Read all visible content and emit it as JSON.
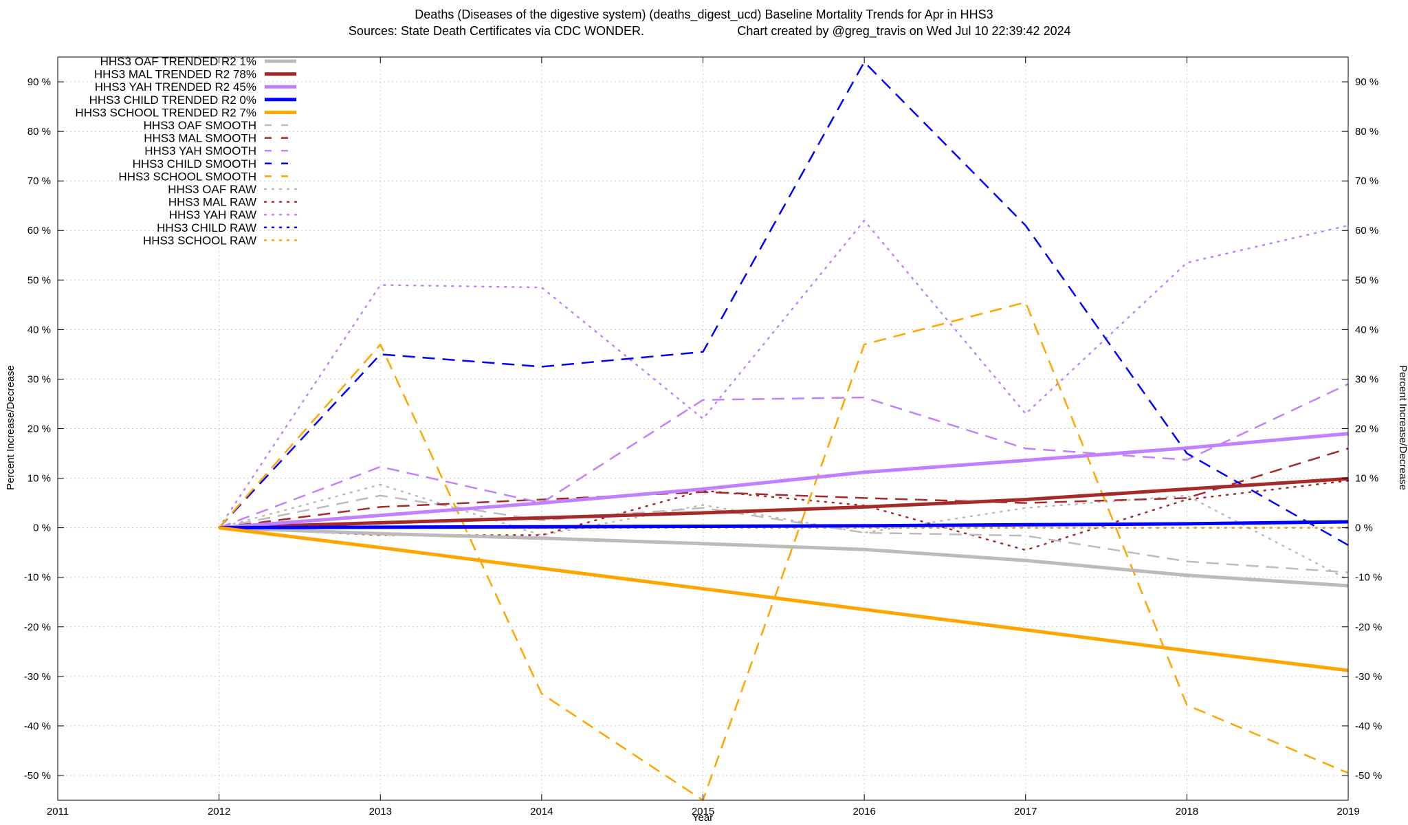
{
  "chart_data": {
    "type": "line",
    "title_line1": "Deaths (Diseases of the digestive system) (deaths_digest_ucd)  Baseline Mortality Trends for Apr in HHS3",
    "title_line2_left": "Sources: State Death Certificates via CDC WONDER.",
    "title_line2_right": "Chart created by @greg_travis on Wed Jul 10 22:39:42 2024",
    "xlabel": "Year",
    "ylabel_left": "Percent Increase/Decrease",
    "ylabel_right": "Percent Increase/Decrease",
    "xlim": [
      2011,
      2019
    ],
    "ylim": [
      -55,
      95
    ],
    "x_ticks": [
      "2011",
      "2012",
      "2013",
      "2014",
      "2015",
      "2016",
      "2017",
      "2018",
      "2019"
    ],
    "y_ticks": [
      "-50 %",
      "-40 %",
      "-30 %",
      "-20 %",
      "-10 %",
      "0 %",
      "10 %",
      "20 %",
      "30 %",
      "40 %",
      "50 %",
      "60 %",
      "70 %",
      "80 %",
      "90 %"
    ],
    "y_tick_values": [
      -50,
      -40,
      -30,
      -20,
      -10,
      0,
      10,
      20,
      30,
      40,
      50,
      60,
      70,
      80,
      90
    ],
    "grid": true,
    "legend_position": "top-left",
    "x": [
      2012,
      2013,
      2014,
      2015,
      2016,
      2017,
      2018,
      2019
    ],
    "series": [
      {
        "name": "HHS3 OAF TRENDED R2",
        "r2": "1%",
        "color": "#bbbbbb",
        "style": "solid",
        "values": [
          0,
          -1.2,
          -2.1,
          -3.2,
          -4.4,
          -6.6,
          -9.6,
          -11.7
        ]
      },
      {
        "name": "HHS3 MAL TRENDED R2",
        "r2": "78%",
        "color": "#a52a2a",
        "style": "solid",
        "values": [
          0,
          1.0,
          2.0,
          3.0,
          4.2,
          5.7,
          7.8,
          9.9
        ]
      },
      {
        "name": "HHS3 YAH TRENDED R2",
        "r2": "45%",
        "color": "#c080ff",
        "style": "solid",
        "values": [
          0,
          2.5,
          5.0,
          7.8,
          11.2,
          13.6,
          16.1,
          19.0
        ]
      },
      {
        "name": "HHS3 CHILD TRENDED R2",
        "r2": "0%",
        "color": "#0000ff",
        "style": "solid",
        "values": [
          0,
          0.1,
          0.2,
          0.3,
          0.4,
          0.6,
          0.8,
          1.2
        ]
      },
      {
        "name": "HHS3 SCHOOL TRENDED R2",
        "r2": "7%",
        "color": "#ffa500",
        "style": "solid",
        "values": [
          0,
          -4.0,
          -8.2,
          -12.3,
          -16.5,
          -20.6,
          -24.8,
          -28.8
        ]
      },
      {
        "name": "HHS3 OAF SMOOTH",
        "color": "#bbbbbb",
        "style": "dashed",
        "values": [
          0,
          6.5,
          1.5,
          4.0,
          -1.0,
          -1.6,
          -6.8,
          -9.0
        ]
      },
      {
        "name": "HHS3 MAL SMOOTH",
        "color": "#a52a2a",
        "style": "dashed",
        "values": [
          0,
          4.2,
          5.7,
          7.2,
          6.0,
          5.0,
          6.0,
          16.0
        ]
      },
      {
        "name": "HHS3 YAH SMOOTH",
        "color": "#c080ff",
        "style": "dashed",
        "values": [
          0,
          12.3,
          5.0,
          25.8,
          26.3,
          16.0,
          13.7,
          29.0
        ]
      },
      {
        "name": "HHS3 CHILD SMOOTH",
        "color": "#0000ff",
        "style": "dashed",
        "values": [
          0,
          35.0,
          32.5,
          35.5,
          94.0,
          61.0,
          15.0,
          -3.5
        ]
      },
      {
        "name": "HHS3 SCHOOL SMOOTH",
        "color": "#ffa500",
        "style": "dashed",
        "values": [
          0,
          37.0,
          -33.5,
          -55.0,
          37.0,
          45.5,
          -35.8,
          -49.5
        ]
      },
      {
        "name": "HHS3 OAF RAW",
        "color": "#bbbbbb",
        "style": "dotted",
        "values": [
          0,
          8.7,
          -1.5,
          4.6,
          -1.0,
          4.0,
          6.5,
          -10.5
        ]
      },
      {
        "name": "HHS3 MAL RAW",
        "color": "#a52a2a",
        "style": "dotted",
        "values": [
          0,
          -1.5,
          -1.5,
          7.5,
          4.5,
          -4.5,
          5.7,
          9.5
        ]
      },
      {
        "name": "HHS3 YAH RAW",
        "color": "#c080ff",
        "style": "dotted",
        "values": [
          0,
          49.0,
          48.5,
          22.0,
          62.0,
          23.0,
          53.5,
          61.0
        ]
      },
      {
        "name": "HHS3 CHILD RAW",
        "color": "#0000ff",
        "style": "dotted",
        "values": [
          0,
          0,
          0,
          0,
          0,
          0,
          0,
          0
        ]
      },
      {
        "name": "HHS3 SCHOOL RAW",
        "color": "#ffa500",
        "style": "dotted",
        "values": [
          0,
          0,
          0,
          0,
          0,
          0,
          0,
          0
        ]
      }
    ]
  }
}
